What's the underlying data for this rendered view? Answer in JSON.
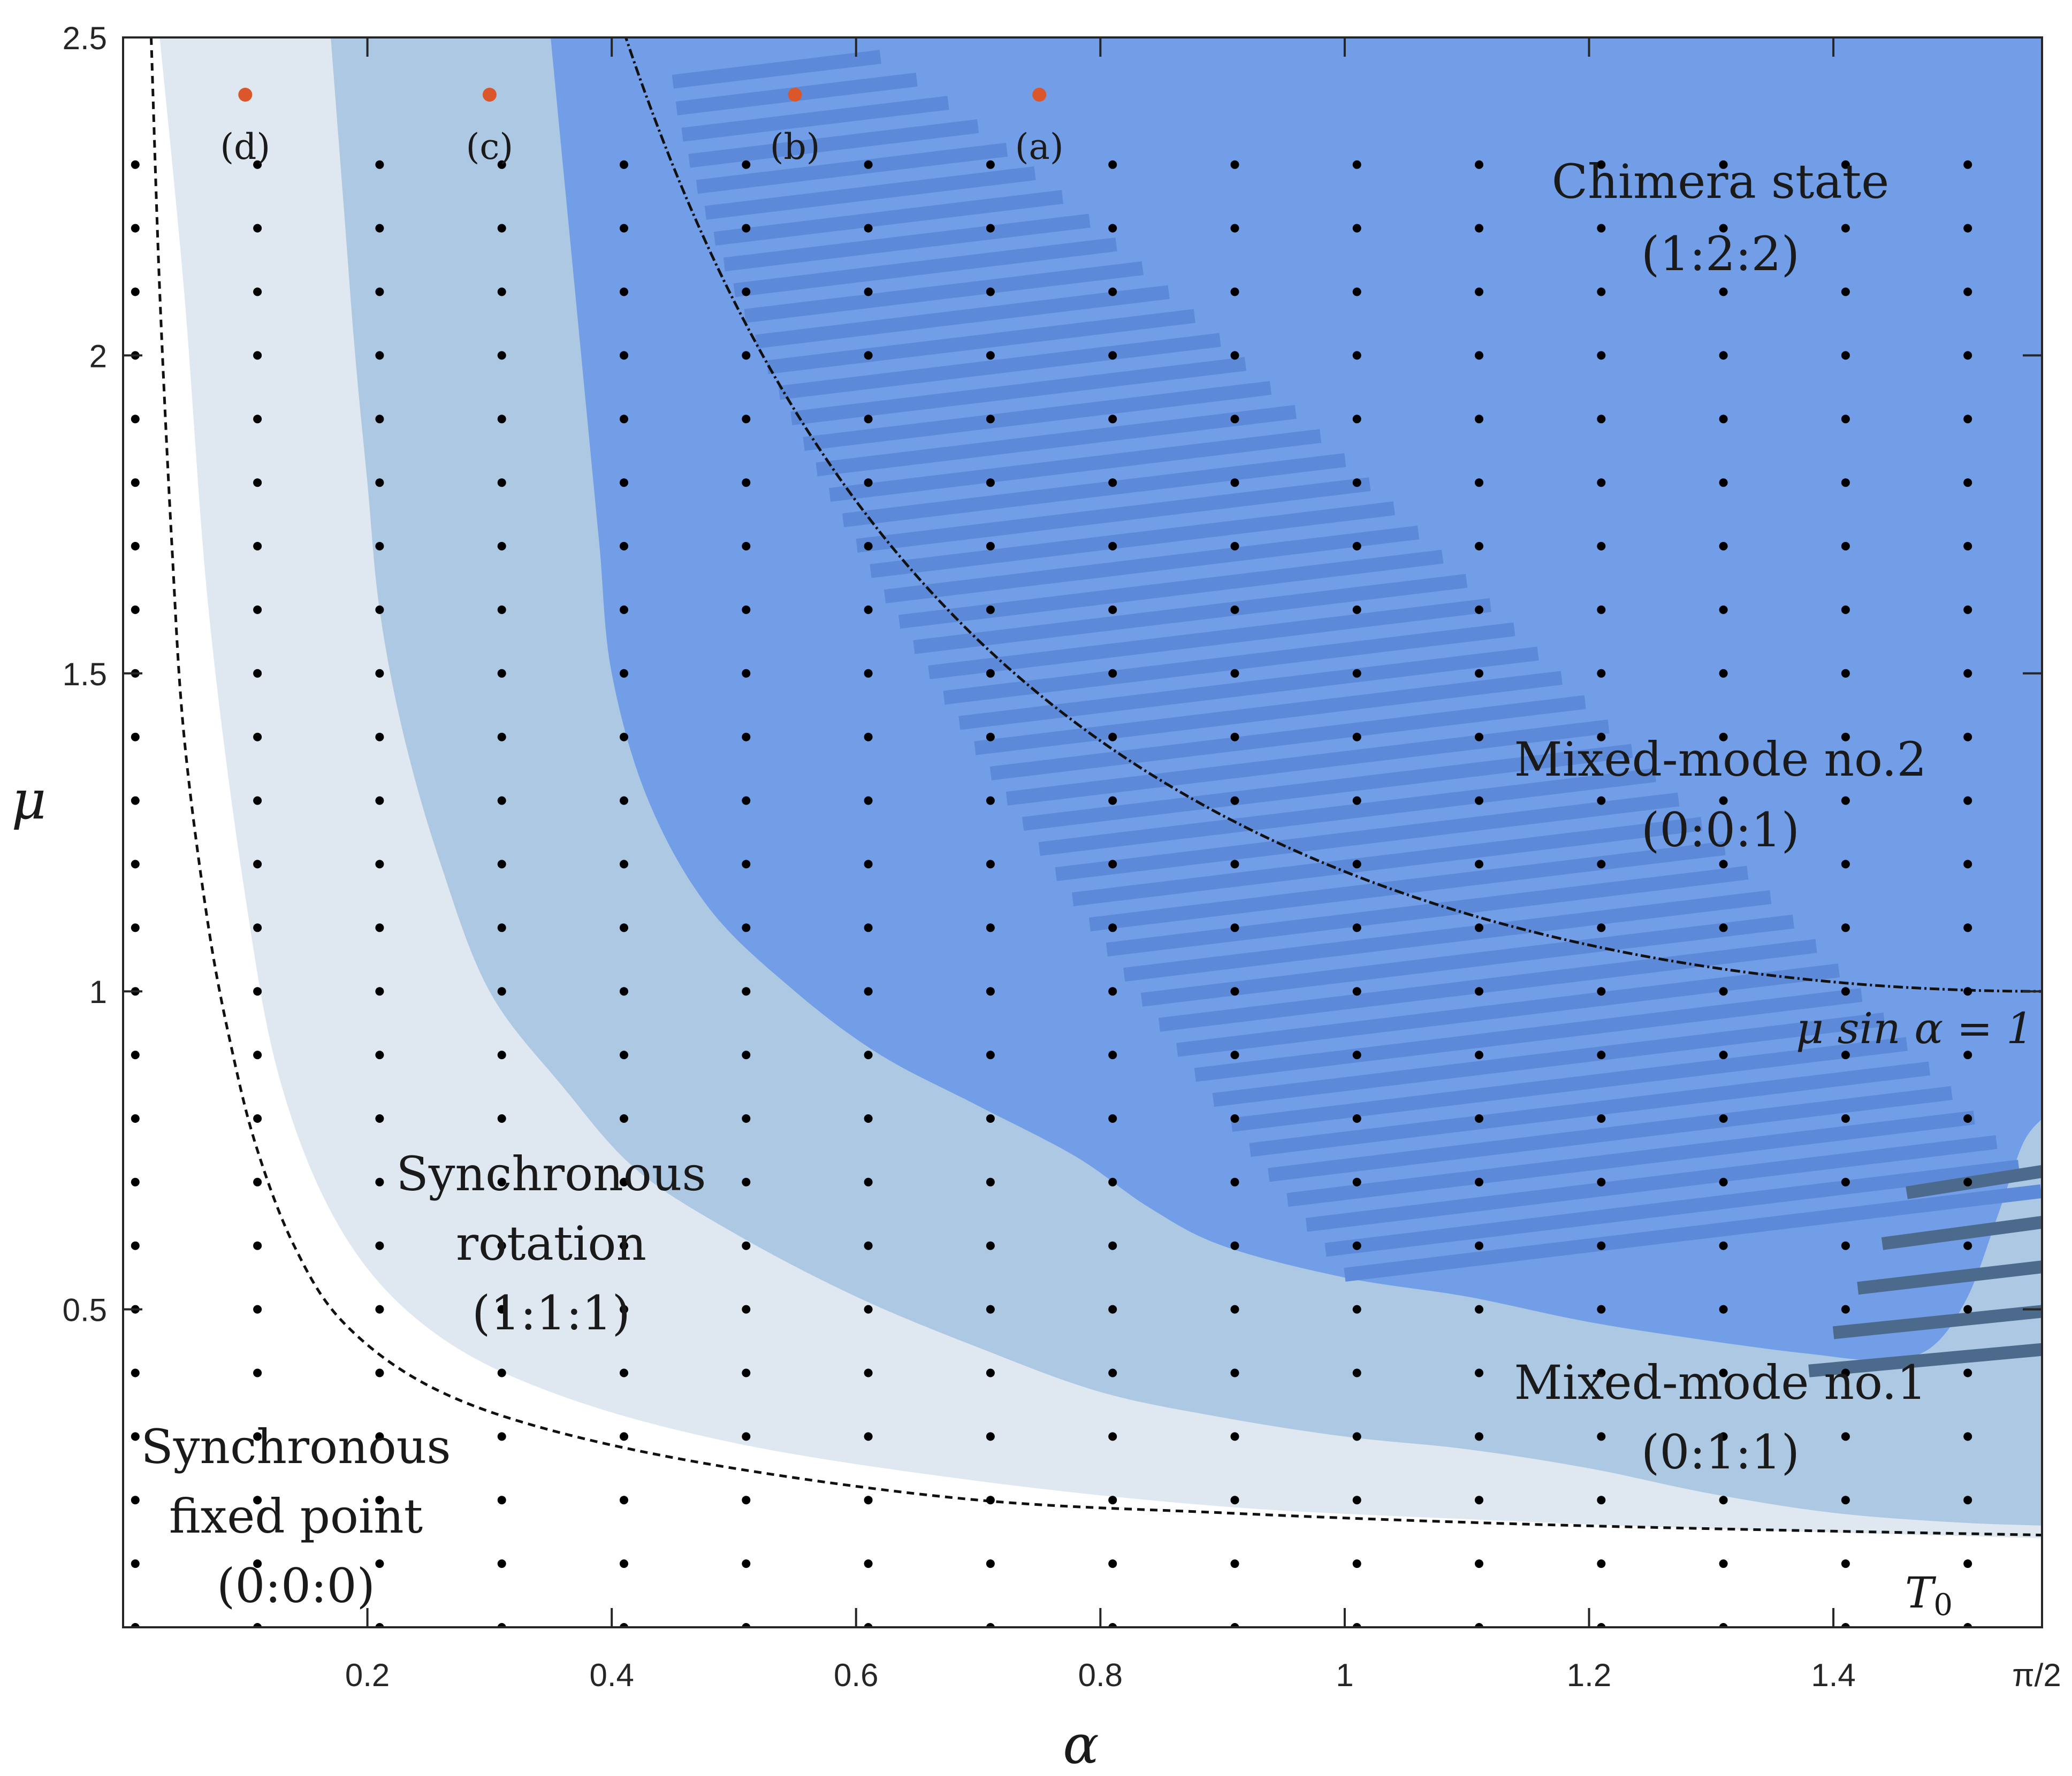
{
  "chart_data": {
    "type": "scatter",
    "title": "",
    "xlabel": "α",
    "ylabel": "μ",
    "xlim": [
      0,
      1.5708
    ],
    "ylim": [
      0,
      2.5
    ],
    "x_ticks": [
      {
        "value": 0.2,
        "label": "0.2"
      },
      {
        "value": 0.4,
        "label": "0.4"
      },
      {
        "value": 0.6,
        "label": "0.6"
      },
      {
        "value": 0.8,
        "label": "0.8"
      },
      {
        "value": 1.0,
        "label": "1"
      },
      {
        "value": 1.2,
        "label": "1.2"
      },
      {
        "value": 1.4,
        "label": "1.4"
      },
      {
        "value": 1.5708,
        "label": "π/2"
      }
    ],
    "y_ticks": [
      {
        "value": 0.5,
        "label": "0.5"
      },
      {
        "value": 1.0,
        "label": "1"
      },
      {
        "value": 1.5,
        "label": "1.5"
      },
      {
        "value": 2.0,
        "label": "2"
      },
      {
        "value": 2.5,
        "label": "2.5"
      }
    ],
    "grid": false,
    "colors": {
      "synchronous_fixed_point": "#ffffff",
      "synchronous_rotation": "#dfe7f1",
      "mixed_mode_1": "#adc8e2",
      "chimera_and_mixed_mode_2": "#729ee8",
      "hatch_mixed_mode_2": "#5d8ad8",
      "hatch_dark": "#4c6a8c",
      "highlight_points": "#d9572b",
      "sample_points": "#000000"
    },
    "regions": [
      {
        "label_lines": [
          "Synchronous",
          "fixed point",
          "(0:0:0)"
        ]
      },
      {
        "label_lines": [
          "Synchronous",
          "rotation",
          "(1:1:1)"
        ]
      },
      {
        "label_lines": [
          "Mixed-mode no.1",
          "(0:1:1)"
        ]
      },
      {
        "label_lines": [
          "Mixed-mode no.2",
          "(0:0:1)"
        ]
      },
      {
        "label_lines": [
          "Chimera state",
          "(1:2:2)"
        ]
      }
    ],
    "boundaries": {
      "rotation_outer": [
        [
          0.03,
          2.5
        ],
        [
          0.05,
          2.1
        ],
        [
          0.07,
          1.6
        ],
        [
          0.1,
          1.15
        ],
        [
          0.13,
          0.85
        ],
        [
          0.18,
          0.62
        ],
        [
          0.25,
          0.47
        ],
        [
          0.35,
          0.37
        ],
        [
          0.5,
          0.29
        ],
        [
          0.7,
          0.23
        ],
        [
          0.9,
          0.19
        ],
        [
          1.1,
          0.17
        ],
        [
          1.3,
          0.155
        ],
        [
          1.5708,
          0.14
        ]
      ],
      "mixed1_outer": [
        [
          0.17,
          2.5
        ],
        [
          0.18,
          2.25
        ],
        [
          0.19,
          2.0
        ],
        [
          0.2,
          1.8
        ],
        [
          0.21,
          1.6
        ],
        [
          0.23,
          1.4
        ],
        [
          0.26,
          1.2
        ],
        [
          0.3,
          1.0
        ],
        [
          0.36,
          0.85
        ],
        [
          0.42,
          0.72
        ],
        [
          0.5,
          0.62
        ],
        [
          0.6,
          0.52
        ],
        [
          0.7,
          0.44
        ],
        [
          0.8,
          0.37
        ],
        [
          0.9,
          0.33
        ],
        [
          1.0,
          0.3
        ],
        [
          1.1,
          0.28
        ],
        [
          1.2,
          0.25
        ],
        [
          1.3,
          0.21
        ],
        [
          1.4,
          0.18
        ],
        [
          1.5,
          0.165
        ],
        [
          1.5708,
          0.16
        ]
      ],
      "chimera_outer": [
        [
          0.35,
          2.5
        ],
        [
          0.36,
          2.3
        ],
        [
          0.37,
          2.1
        ],
        [
          0.38,
          1.9
        ],
        [
          0.39,
          1.7
        ],
        [
          0.4,
          1.5
        ],
        [
          0.43,
          1.3
        ],
        [
          0.48,
          1.13
        ],
        [
          0.55,
          1.0
        ],
        [
          0.62,
          0.9
        ],
        [
          0.7,
          0.82
        ],
        [
          0.78,
          0.74
        ],
        [
          0.84,
          0.66
        ],
        [
          0.9,
          0.6
        ],
        [
          1.0,
          0.55
        ],
        [
          1.1,
          0.52
        ],
        [
          1.2,
          0.48
        ],
        [
          1.3,
          0.45
        ],
        [
          1.38,
          0.43
        ],
        [
          1.44,
          0.42
        ],
        [
          1.48,
          0.44
        ],
        [
          1.51,
          0.52
        ],
        [
          1.535,
          0.65
        ],
        [
          1.555,
          0.76
        ],
        [
          1.5708,
          0.8
        ]
      ],
      "T0_curve": [
        [
          0.023,
          2.5
        ],
        [
          0.03,
          2.1
        ],
        [
          0.04,
          1.7
        ],
        [
          0.05,
          1.4
        ],
        [
          0.07,
          1.1
        ],
        [
          0.09,
          0.9
        ],
        [
          0.11,
          0.75
        ],
        [
          0.14,
          0.6
        ],
        [
          0.18,
          0.48
        ],
        [
          0.25,
          0.38
        ],
        [
          0.35,
          0.31
        ],
        [
          0.5,
          0.25
        ],
        [
          0.7,
          0.2
        ],
        [
          0.9,
          0.18
        ],
        [
          1.1,
          0.165
        ],
        [
          1.3,
          0.155
        ],
        [
          1.5708,
          0.145
        ]
      ]
    },
    "curve_labels": {
      "sin_curve": "μ sin α = 1",
      "T0": "T",
      "T0_sub": "0"
    },
    "highlight_points": [
      {
        "x": 0.75,
        "y": 2.41,
        "label": "(a)"
      },
      {
        "x": 0.55,
        "y": 2.41,
        "label": "(b)"
      },
      {
        "x": 0.3,
        "y": 2.41,
        "label": "(c)"
      },
      {
        "x": 0.1,
        "y": 2.41,
        "label": "(d)"
      }
    ],
    "sample_grid": {
      "x_start": 0.0,
      "x_step": 0.1,
      "x_count": 16,
      "y_start": 0.0,
      "y_step": 0.1,
      "y_count": 24
    }
  }
}
